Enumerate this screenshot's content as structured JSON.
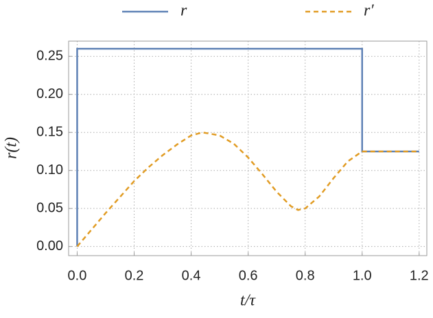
{
  "chart_data": {
    "type": "line",
    "xlabel": "t/τ",
    "ylabel": "r(t)",
    "xlim": [
      -0.03,
      1.227
    ],
    "ylim": [
      -0.012,
      0.27
    ],
    "xticks": [
      {
        "value": 0,
        "label": "0.0"
      },
      {
        "value": 0.2,
        "label": "0.2"
      },
      {
        "value": 0.4,
        "label": "0.4"
      },
      {
        "value": 0.6,
        "label": "0.6"
      },
      {
        "value": 0.8,
        "label": "0.8"
      },
      {
        "value": 1,
        "label": "1.0"
      },
      {
        "value": 1.2,
        "label": "1.2"
      }
    ],
    "yticks": [
      {
        "value": 0,
        "label": "0.00"
      },
      {
        "value": 0.05,
        "label": "0.05"
      },
      {
        "value": 0.1,
        "label": "0.10"
      },
      {
        "value": 0.15,
        "label": "0.15"
      },
      {
        "value": 0.2,
        "label": "0.20"
      },
      {
        "value": 0.25,
        "label": "0.25"
      }
    ],
    "grid": true,
    "legend": "top",
    "series": [
      {
        "name": "r",
        "color": "#5e81b5",
        "dashed": false,
        "x": [
          0,
          0,
          1,
          1,
          1.2
        ],
        "values": [
          0,
          0.26,
          0.26,
          0.125,
          0.125
        ]
      },
      {
        "name": "r′",
        "color": "#e19c24",
        "dashed": true,
        "x": [
          0,
          0.05,
          0.1,
          0.15,
          0.2,
          0.25,
          0.3,
          0.35,
          0.4,
          0.44,
          0.5,
          0.55,
          0.6,
          0.65,
          0.7,
          0.75,
          0.775,
          0.8,
          0.85,
          0.9,
          0.95,
          1.0,
          1.2
        ],
        "values": [
          0,
          0.022,
          0.044,
          0.065,
          0.086,
          0.104,
          0.12,
          0.134,
          0.146,
          0.15,
          0.146,
          0.135,
          0.117,
          0.095,
          0.072,
          0.053,
          0.048,
          0.05,
          0.066,
          0.09,
          0.112,
          0.125,
          0.125
        ]
      }
    ]
  }
}
